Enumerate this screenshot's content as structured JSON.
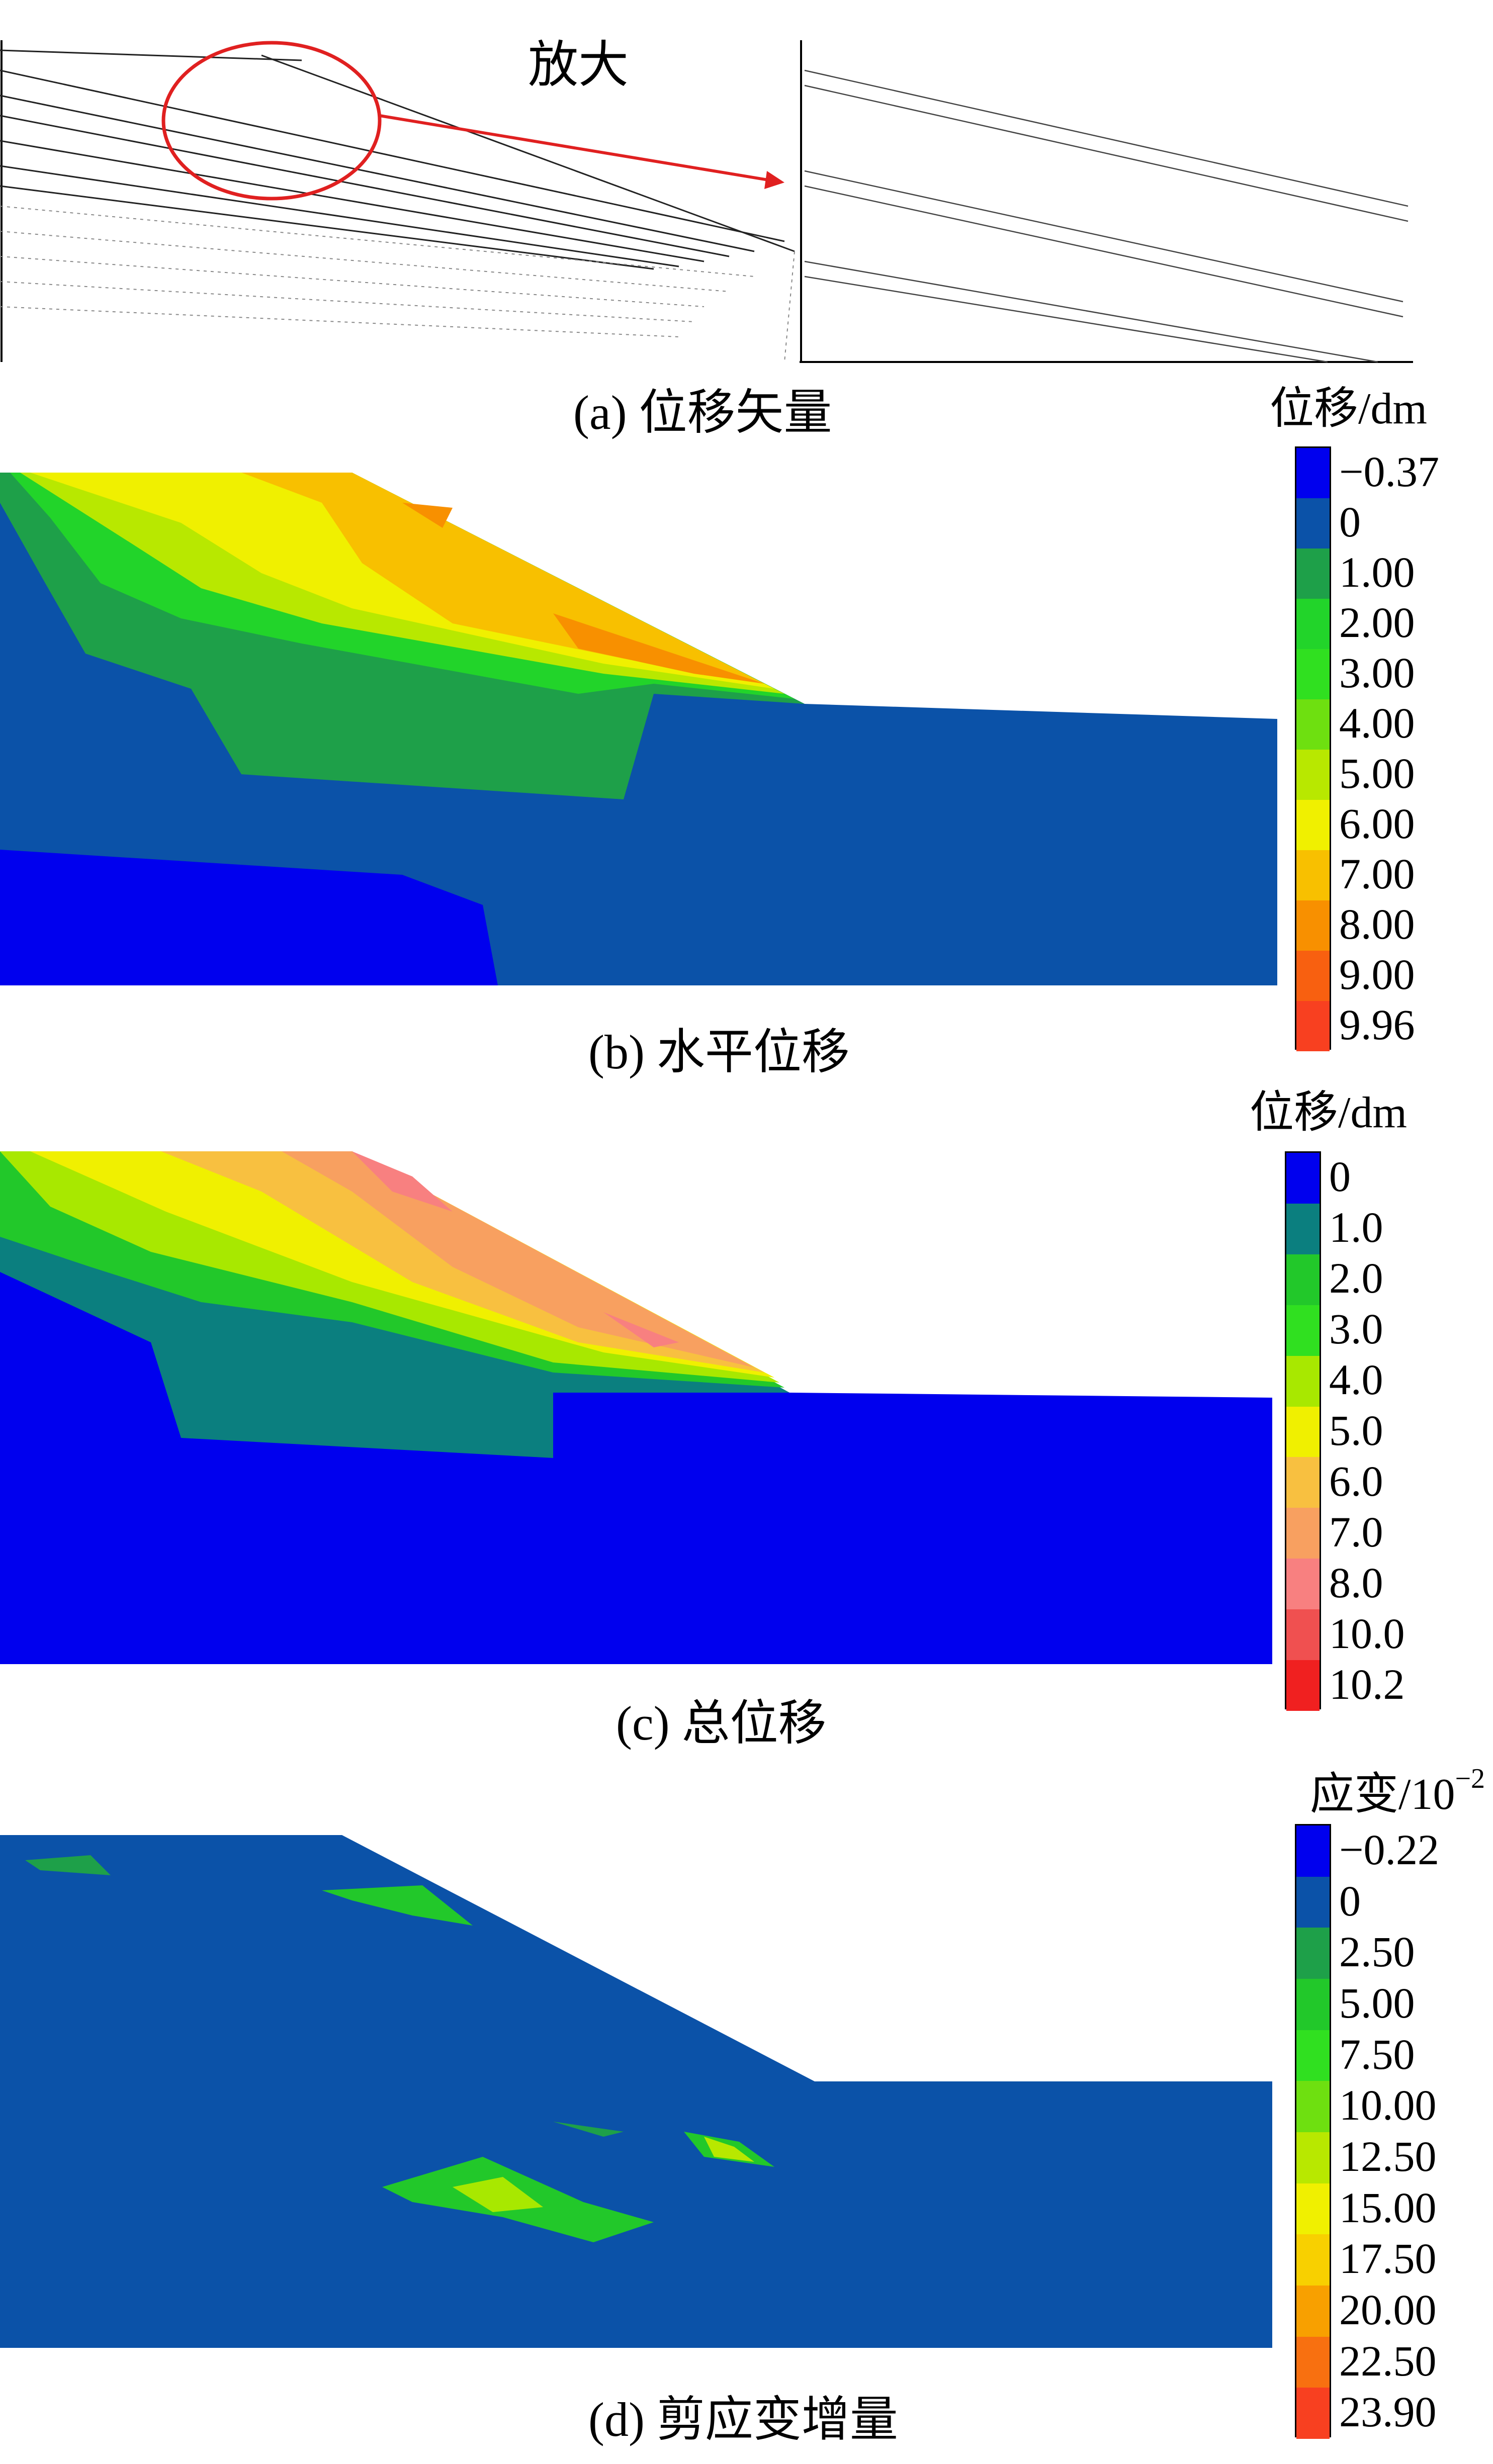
{
  "panels": [
    {
      "id": "a",
      "caption": "(a)  位移矢量",
      "zoom_label": "放大"
    },
    {
      "id": "b",
      "caption": "(b)  水平位移",
      "legend": {
        "unit": "位移/dm",
        "labels": [
          "−0.37",
          "0",
          "1.00",
          "2.00",
          "3.00",
          "4.00",
          "5.00",
          "6.00",
          "7.00",
          "8.00",
          "9.00",
          "9.96"
        ],
        "colors": [
          "#0000ee",
          "#0b52a8",
          "#1ea049",
          "#22d42a",
          "#30e020",
          "#6ee010",
          "#b8e800",
          "#f0f000",
          "#f8c000",
          "#f89000",
          "#f86010",
          "#f84020"
        ]
      }
    },
    {
      "id": "c",
      "caption": "(c)  总位移",
      "legend": {
        "unit": "位移/dm",
        "labels": [
          "0",
          "1.0",
          "2.0",
          "3.0",
          "4.0",
          "5.0",
          "6.0",
          "7.0",
          "8.0",
          "10.0",
          "10.2"
        ],
        "colors": [
          "#0000ee",
          "#0b7f7f",
          "#22c82a",
          "#30e020",
          "#a8e800",
          "#f0f000",
          "#f8c040",
          "#f8a060",
          "#f88080",
          "#f05050",
          "#f02020"
        ]
      }
    },
    {
      "id": "d",
      "caption": "(d)  剪应变增量",
      "legend": {
        "unit": "应变/10",
        "unit_sup": "−2",
        "labels": [
          "−0.22",
          "0",
          "2.50",
          "5.00",
          "7.50",
          "10.00",
          "12.50",
          "15.00",
          "17.50",
          "20.00",
          "22.50",
          "23.90"
        ],
        "colors": [
          "#0000ee",
          "#0b52a8",
          "#1ea049",
          "#22c82a",
          "#30e020",
          "#6ee010",
          "#b8e800",
          "#f0f000",
          "#f8d000",
          "#f8a000",
          "#f87010",
          "#f84020"
        ]
      }
    }
  ]
}
